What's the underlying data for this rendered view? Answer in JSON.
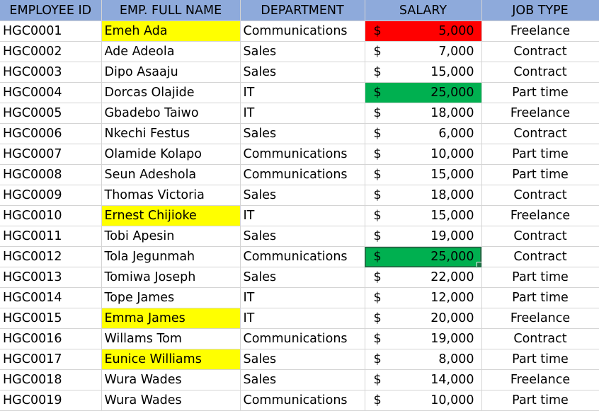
{
  "headers": [
    "EMPLOYEE ID",
    "EMP. FULL NAME",
    "DEPARTMENT",
    "SALARY",
    "JOB TYPE"
  ],
  "header_color": "#8eaadb",
  "currency_symbol": "$",
  "highlight_colors": {
    "yellow": "#ffff00",
    "red": "#ff0000",
    "green": "#00b050"
  },
  "rows": [
    {
      "id": "HGC0001",
      "name": "Emeh Ada",
      "dept": "Communications",
      "salary": "5,000",
      "job": "Freelance",
      "name_hl": "yellow",
      "salary_hl": "red"
    },
    {
      "id": "HGC0002",
      "name": "Ade Adeola",
      "dept": "Sales",
      "salary": "7,000",
      "job": "Contract"
    },
    {
      "id": "HGC0003",
      "name": "Dipo Asaaju",
      "dept": "Sales",
      "salary": "15,000",
      "job": "Contract"
    },
    {
      "id": "HGC0004",
      "name": "Dorcas Olajide",
      "dept": "IT",
      "salary": "25,000",
      "job": "Part time",
      "salary_hl": "green"
    },
    {
      "id": "HGC0005",
      "name": "Gbadebo Taiwo",
      "dept": "IT",
      "salary": "18,000",
      "job": "Freelance"
    },
    {
      "id": "HGC0006",
      "name": "Nkechi Festus",
      "dept": "Sales",
      "salary": "6,000",
      "job": "Contract"
    },
    {
      "id": "HGC0007",
      "name": "Olamide Kolapo",
      "dept": "Communications",
      "salary": "10,000",
      "job": "Part time"
    },
    {
      "id": "HGC0008",
      "name": "Seun Adeshola",
      "dept": "Communications",
      "salary": "15,000",
      "job": "Part time"
    },
    {
      "id": "HGC0009",
      "name": "Thomas Victoria",
      "dept": "Sales",
      "salary": "18,000",
      "job": "Contract"
    },
    {
      "id": "HGC0010",
      "name": "Ernest Chijioke",
      "dept": "IT",
      "salary": "15,000",
      "job": "Freelance",
      "name_hl": "yellow"
    },
    {
      "id": "HGC0011",
      "name": "Tobi Apesin",
      "dept": "Sales",
      "salary": "19,000",
      "job": "Contract"
    },
    {
      "id": "HGC0012",
      "name": "Tola Jegunmah",
      "dept": "Communications",
      "salary": "25,000",
      "job": "Contract",
      "salary_hl": "green",
      "selected": true
    },
    {
      "id": "HGC0013",
      "name": "Tomiwa Joseph",
      "dept": "Sales",
      "salary": "22,000",
      "job": "Part time"
    },
    {
      "id": "HGC0014",
      "name": "Tope James",
      "dept": "IT",
      "salary": "12,000",
      "job": "Part time"
    },
    {
      "id": "HGC0015",
      "name": "Emma James",
      "dept": "IT",
      "salary": "20,000",
      "job": "Freelance",
      "name_hl": "yellow"
    },
    {
      "id": "HGC0016",
      "name": "Willams Tom",
      "dept": "Communications",
      "salary": "19,000",
      "job": "Contract"
    },
    {
      "id": "HGC0017",
      "name": "Eunice Williams",
      "dept": "Sales",
      "salary": "8,000",
      "job": "Part time",
      "name_hl": "yellow"
    },
    {
      "id": "HGC0018",
      "name": "Wura Wades",
      "dept": "Sales",
      "salary": "14,000",
      "job": "Freelance"
    },
    {
      "id": "HGC0019",
      "name": "Wura Wades",
      "dept": "Communications",
      "salary": "10,000",
      "job": "Part time"
    }
  ]
}
